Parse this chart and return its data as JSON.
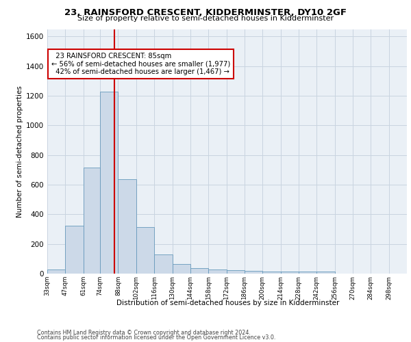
{
  "title": "23, RAINSFORD CRESCENT, KIDDERMINSTER, DY10 2GF",
  "subtitle": "Size of property relative to semi-detached houses in Kidderminster",
  "xlabel": "Distribution of semi-detached houses by size in Kidderminster",
  "ylabel": "Number of semi-detached properties",
  "footer_line1": "Contains HM Land Registry data © Crown copyright and database right 2024.",
  "footer_line2": "Contains public sector information licensed under the Open Government Licence v3.0.",
  "bin_edges": [
    33,
    47,
    61,
    74,
    88,
    102,
    116,
    130,
    144,
    158,
    172,
    186,
    200,
    214,
    228,
    242,
    256,
    270,
    284,
    298,
    312
  ],
  "counts": [
    30,
    325,
    715,
    1230,
    635,
    315,
    130,
    65,
    38,
    28,
    22,
    18,
    15,
    13,
    12,
    14,
    0,
    0,
    0,
    0
  ],
  "property_size": 85,
  "property_label": "23 RAINSFORD CRESCENT: 85sqm",
  "smaller_pct": "56%",
  "smaller_count": "1,977",
  "larger_pct": "42%",
  "larger_count": "1,467",
  "bar_color": "#ccd9e8",
  "bar_edge_color": "#6699bb",
  "red_line_color": "#cc0000",
  "annotation_box_edge": "#cc0000",
  "grid_color": "#c8d4e0",
  "background_color": "#eaf0f6",
  "ylim": [
    0,
    1650
  ],
  "yticks": [
    0,
    200,
    400,
    600,
    800,
    1000,
    1200,
    1400,
    1600
  ]
}
